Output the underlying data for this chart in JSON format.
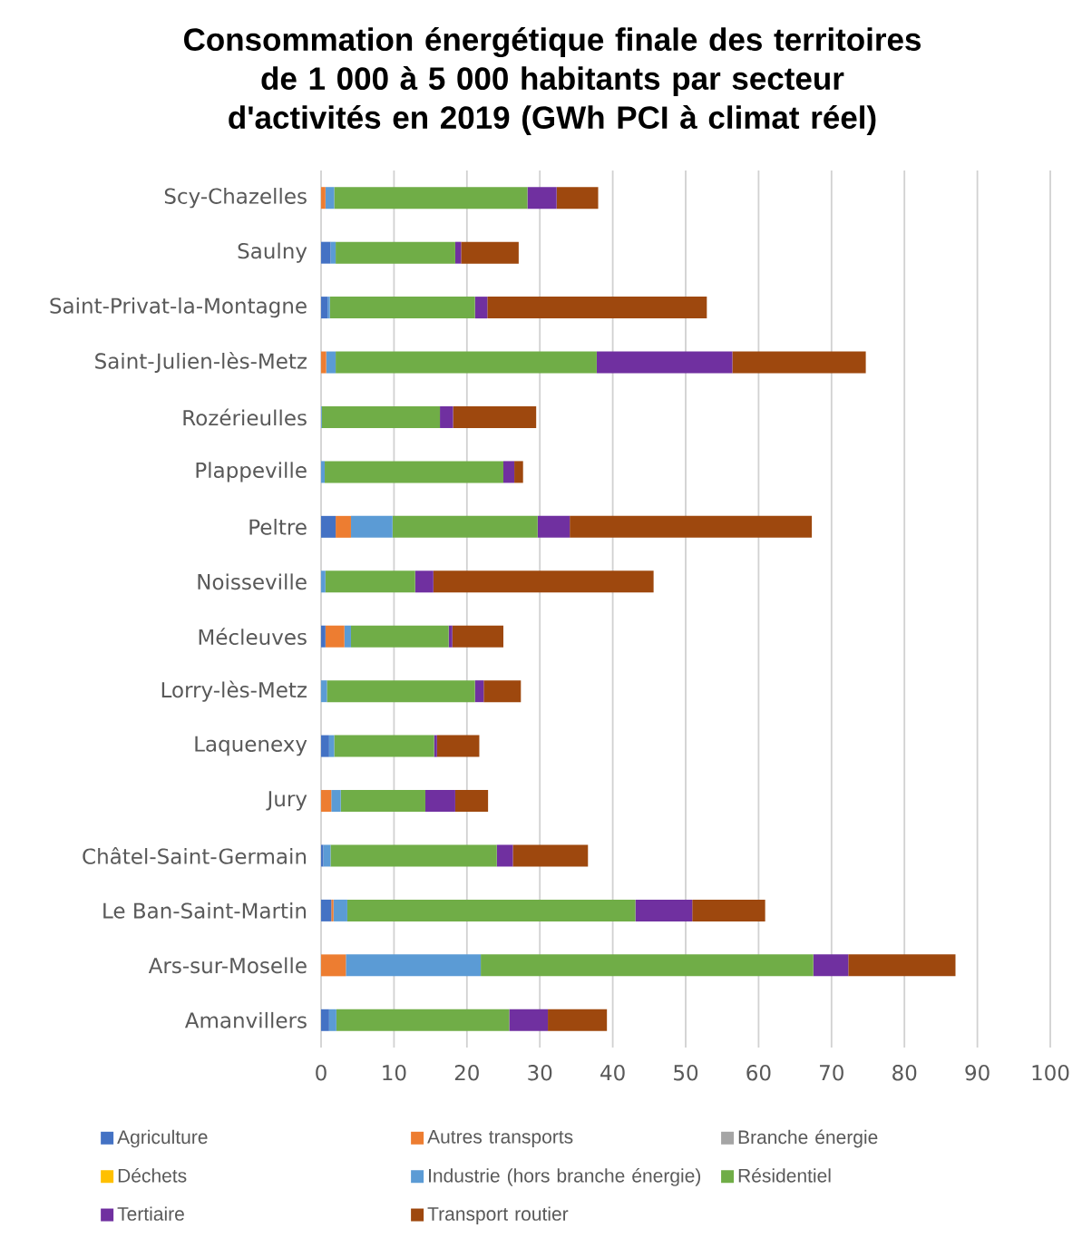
{
  "chart_data": {
    "type": "bar",
    "orientation": "horizontal",
    "stacked": true,
    "title": "Consommation énergétique finale des territoires de 1 000 à 5 000 habitants par secteur d'activités en 2019 (GWh PCI à climat réel)",
    "categories": [
      "Scy-Chazelles",
      "Saulny",
      "Saint-Privat-la-Montagne",
      "Saint-Julien-lès-Metz",
      "Rozérieulles",
      "Plappeville",
      "Peltre",
      "Noisseville",
      "Mécleuves",
      "Lorry-lès-Metz",
      "Laquenexy",
      "Jury",
      "Châtel-Saint-Germain",
      "Le Ban-Saint-Martin",
      "Ars-sur-Moselle",
      "Amanvillers"
    ],
    "series": [
      {
        "name": "Agriculture",
        "color": "#4472c4",
        "values": [
          0,
          1.3,
          0.9,
          0,
          0,
          0,
          2.0,
          0,
          0.6,
          0,
          1.1,
          0,
          0.3,
          1.4,
          0,
          1.1
        ]
      },
      {
        "name": "Autres transports",
        "color": "#ed7d31",
        "values": [
          0.6,
          0,
          0,
          0.7,
          0,
          0,
          2.1,
          0,
          2.6,
          0,
          0,
          1.4,
          0,
          0.3,
          3.4,
          0
        ]
      },
      {
        "name": "Branche énergie",
        "color": "#a5a5a5",
        "values": [
          0,
          0,
          0,
          0,
          0,
          0,
          0,
          0,
          0,
          0,
          0,
          0,
          0,
          0,
          0,
          0
        ]
      },
      {
        "name": "Déchets",
        "color": "#ffc000",
        "values": [
          0,
          0,
          0,
          0,
          0,
          0,
          0,
          0,
          0,
          0,
          0,
          0,
          0,
          0,
          0,
          0
        ]
      },
      {
        "name": "Industrie (hors branche énergie)",
        "color": "#5b9bd5",
        "values": [
          1.2,
          0.7,
          0.3,
          1.3,
          0.1,
          0.5,
          5.7,
          0.6,
          0.9,
          0.8,
          0.7,
          1.3,
          1.0,
          1.9,
          18.5,
          1.0
        ]
      },
      {
        "name": "Résidentiel",
        "color": "#70ad47",
        "values": [
          26.5,
          16.4,
          19.9,
          35.8,
          16.2,
          24.5,
          19.9,
          12.3,
          13.4,
          20.3,
          13.7,
          11.6,
          22.8,
          39.5,
          45.6,
          23.7
        ]
      },
      {
        "name": "Tertiaire",
        "color": "#7030a0",
        "values": [
          4.0,
          0.8,
          1.7,
          18.6,
          1.8,
          1.5,
          4.4,
          2.5,
          0.5,
          1.2,
          0.4,
          4.1,
          2.2,
          7.8,
          4.8,
          5.3
        ]
      },
      {
        "name": "Transport routier",
        "color": "#9e480e",
        "values": [
          5.7,
          7.9,
          30.1,
          18.3,
          11.4,
          1.2,
          33.2,
          30.2,
          7.0,
          5.1,
          5.8,
          4.5,
          10.3,
          10.0,
          14.7,
          8.1
        ]
      }
    ],
    "xlim": [
      0,
      100
    ],
    "xticks": [
      0,
      10,
      20,
      30,
      40,
      50,
      60,
      70,
      80,
      90,
      100
    ],
    "grid": "x",
    "legend": "bottom"
  }
}
